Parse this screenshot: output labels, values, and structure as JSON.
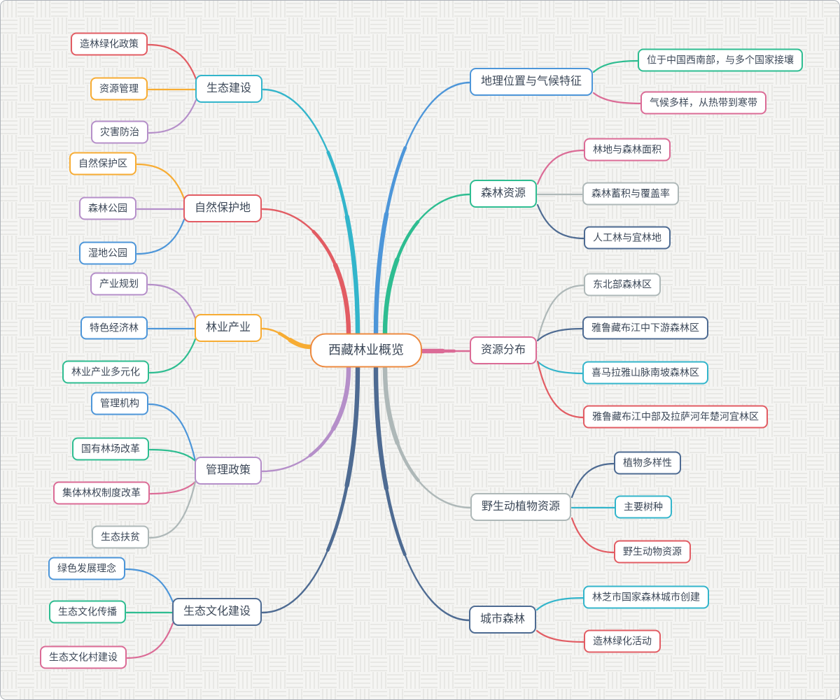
{
  "title": {
    "label": "西藏林业概览"
  },
  "palette": {
    "orange": "#ED8A3F",
    "yellow": "#F7AC33",
    "blue": "#4D96D9",
    "green": "#2EBD91",
    "cyan": "#33B5CB",
    "pink": "#DB6B96",
    "red": "#E25C63",
    "purple": "#B58FC9",
    "gray": "#AEB8B8",
    "navy": "#4E6B92",
    "text": "#3C4858",
    "node_bg": "#FFFFFF",
    "background": "#F5F5F3",
    "pattern_line": "#E8E8E5"
  },
  "branches": [
    {
      "id": "geo-climate",
      "label": "地理位置与气候特征",
      "color": "blue",
      "children": [
        {
          "id": "location",
          "label": "位于中国西南部，与多个国家接壤",
          "color": "green"
        },
        {
          "id": "climate-variety",
          "label": "气候多样，从热带到寒带",
          "color": "pink"
        }
      ]
    },
    {
      "id": "forest-resources",
      "label": "森林资源",
      "color": "green",
      "children": [
        {
          "id": "forest-area",
          "label": "林地与森林面积",
          "color": "pink"
        },
        {
          "id": "forest-stock",
          "label": "森林蓄积与覆盖率",
          "color": "gray"
        },
        {
          "id": "plantation-land",
          "label": "人工林与宜林地",
          "color": "navy"
        }
      ]
    },
    {
      "id": "resource-distribution",
      "label": "资源分布",
      "color": "pink",
      "children": [
        {
          "id": "northeast-forest",
          "label": "东北部森林区",
          "color": "gray"
        },
        {
          "id": "yarlung-mid-lower",
          "label": "雅鲁藏布江中下游森林区",
          "color": "navy"
        },
        {
          "id": "himalaya-south",
          "label": "喜马拉雅山脉南坡森林区",
          "color": "cyan"
        },
        {
          "id": "yarlung-lhasa-nianchu",
          "label": "雅鲁藏布江中部及拉萨河年楚河宜林区",
          "color": "red"
        }
      ]
    },
    {
      "id": "wildlife-resources",
      "label": "野生动植物资源",
      "color": "gray",
      "children": [
        {
          "id": "plant-diversity",
          "label": "植物多样性",
          "color": "navy"
        },
        {
          "id": "main-tree-species",
          "label": "主要树种",
          "color": "cyan"
        },
        {
          "id": "wild-animals",
          "label": "野生动物资源",
          "color": "red"
        }
      ]
    },
    {
      "id": "urban-forest",
      "label": "城市森林",
      "color": "navy",
      "children": [
        {
          "id": "linzhi-forest-city",
          "label": "林芝市国家森林城市创建",
          "color": "cyan"
        },
        {
          "id": "greening-activities",
          "label": "造林绿化活动",
          "color": "red"
        }
      ]
    },
    {
      "id": "eco-construction",
      "label": "生态建设",
      "color": "cyan",
      "children": [
        {
          "id": "afforestation-policy",
          "label": "造林绿化政策",
          "color": "red"
        },
        {
          "id": "resource-management",
          "label": "资源管理",
          "color": "yellow"
        },
        {
          "id": "disaster-prevention",
          "label": "灾害防治",
          "color": "purple"
        }
      ]
    },
    {
      "id": "nature-reserves",
      "label": "自然保护地",
      "color": "red",
      "children": [
        {
          "id": "nature-reserve",
          "label": "自然保护区",
          "color": "yellow"
        },
        {
          "id": "forest-park",
          "label": "森林公园",
          "color": "purple"
        },
        {
          "id": "wetland-park",
          "label": "湿地公园",
          "color": "blue"
        }
      ]
    },
    {
      "id": "forestry-industry",
      "label": "林业产业",
      "color": "yellow",
      "children": [
        {
          "id": "industry-planning",
          "label": "产业规划",
          "color": "purple"
        },
        {
          "id": "special-economic-forest",
          "label": "特色经济林",
          "color": "blue"
        },
        {
          "id": "industry-diversification",
          "label": "林业产业多元化",
          "color": "green"
        }
      ]
    },
    {
      "id": "management-policy",
      "label": "管理政策",
      "color": "purple",
      "children": [
        {
          "id": "management-org",
          "label": "管理机构",
          "color": "blue"
        },
        {
          "id": "state-forest-reform",
          "label": "国有林场改革",
          "color": "green"
        },
        {
          "id": "collective-forest-reform",
          "label": "集体林权制度改革",
          "color": "pink"
        },
        {
          "id": "eco-poverty-alleviation",
          "label": "生态扶贫",
          "color": "gray"
        }
      ]
    },
    {
      "id": "eco-culture",
      "label": "生态文化建设",
      "color": "navy",
      "children": [
        {
          "id": "green-development",
          "label": "绿色发展理念",
          "color": "blue"
        },
        {
          "id": "eco-culture-spread",
          "label": "生态文化传播",
          "color": "green"
        },
        {
          "id": "eco-culture-village",
          "label": "生态文化村建设",
          "color": "pink"
        }
      ]
    }
  ]
}
